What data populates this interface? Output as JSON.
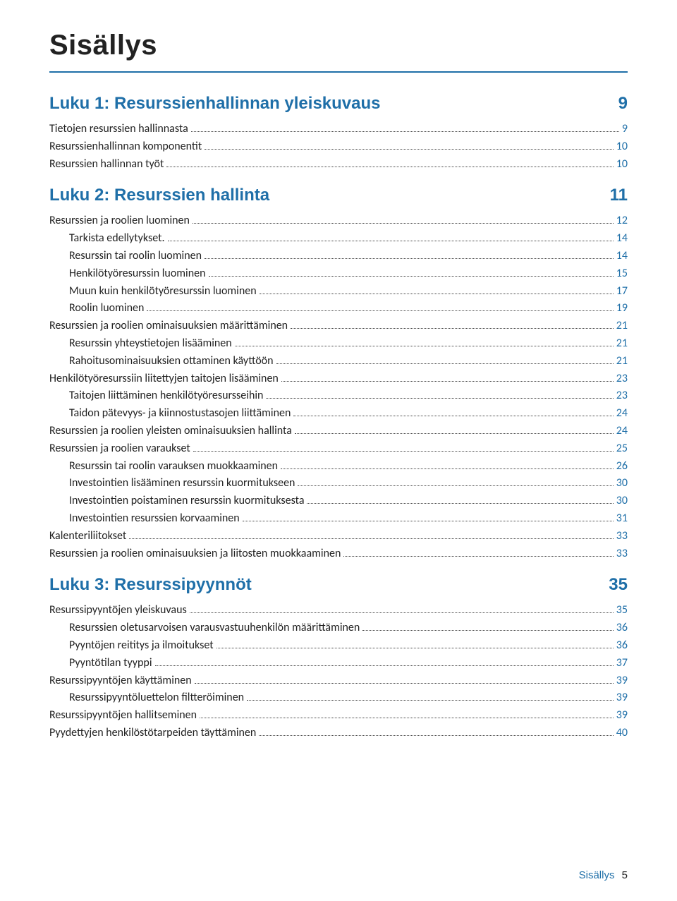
{
  "colors": {
    "accent_blue": "#1f6fa8",
    "text_body": "#222222",
    "rule_blue": "#1f6fa8",
    "leader_gray": "#444444",
    "page_number_blue": "#1f6fa8"
  },
  "title": "Sisällys",
  "chapters": [
    {
      "heading": "Luku 1: Resurssienhallinnan yleiskuvaus",
      "page": "9",
      "entries": [
        {
          "level": 0,
          "label": "Tietojen resurssien hallinnasta",
          "page": "9"
        },
        {
          "level": 0,
          "label": "Resurssienhallinnan komponentit",
          "page": "10"
        },
        {
          "level": 0,
          "label": "Resurssien hallinnan työt",
          "page": "10"
        }
      ]
    },
    {
      "heading": "Luku 2: Resurssien hallinta",
      "page": "11",
      "entries": [
        {
          "level": 0,
          "label": "Resurssien ja roolien luominen",
          "page": "12"
        },
        {
          "level": 1,
          "label": "Tarkista edellytykset.",
          "page": "14"
        },
        {
          "level": 1,
          "label": "Resurssin tai roolin luominen",
          "page": "14"
        },
        {
          "level": 1,
          "label": "Henkilötyöresurssin luominen",
          "page": "15"
        },
        {
          "level": 1,
          "label": "Muun kuin henkilötyöresurssin luominen",
          "page": "17"
        },
        {
          "level": 1,
          "label": "Roolin luominen",
          "page": "19"
        },
        {
          "level": 0,
          "label": "Resurssien ja roolien ominaisuuksien määrittäminen",
          "page": "21"
        },
        {
          "level": 1,
          "label": "Resurssin yhteystietojen lisääminen",
          "page": "21"
        },
        {
          "level": 1,
          "label": "Rahoitusominaisuuksien ottaminen käyttöön",
          "page": "21"
        },
        {
          "level": 0,
          "label": "Henkilötyöresurssiin liitettyjen taitojen lisääminen",
          "page": "23"
        },
        {
          "level": 1,
          "label": "Taitojen liittäminen henkilötyöresursseihin",
          "page": "23"
        },
        {
          "level": 1,
          "label": "Taidon pätevyys- ja kiinnostustasojen liittäminen",
          "page": "24"
        },
        {
          "level": 0,
          "label": "Resurssien ja roolien yleisten ominaisuuksien hallinta",
          "page": "24"
        },
        {
          "level": 0,
          "label": "Resurssien ja roolien varaukset",
          "page": "25"
        },
        {
          "level": 1,
          "label": "Resurssin tai roolin varauksen muokkaaminen",
          "page": "26"
        },
        {
          "level": 1,
          "label": "Investointien lisääminen resurssin kuormitukseen",
          "page": "30"
        },
        {
          "level": 1,
          "label": "Investointien poistaminen resurssin kuormituksesta",
          "page": "30"
        },
        {
          "level": 1,
          "label": "Investointien resurssien korvaaminen",
          "page": "31"
        },
        {
          "level": 0,
          "label": "Kalenteriliitokset",
          "page": "33"
        },
        {
          "level": 0,
          "label": "Resurssien ja roolien ominaisuuksien ja liitosten muokkaaminen",
          "page": "33"
        }
      ]
    },
    {
      "heading": "Luku 3: Resurssipyynnöt",
      "page": "35",
      "entries": [
        {
          "level": 0,
          "label": "Resurssipyyntöjen yleiskuvaus",
          "page": "35"
        },
        {
          "level": 1,
          "label": "Resurssien oletusarvoisen varausvastuuhenkilön määrittäminen",
          "page": "36"
        },
        {
          "level": 1,
          "label": "Pyyntöjen reititys ja ilmoitukset",
          "page": "36"
        },
        {
          "level": 1,
          "label": "Pyyntötilan tyyppi",
          "page": "37"
        },
        {
          "level": 0,
          "label": "Resurssipyyntöjen käyttäminen",
          "page": "39"
        },
        {
          "level": 1,
          "label": "Resurssipyyntöluettelon filtteröiminen",
          "page": "39"
        },
        {
          "level": 0,
          "label": "Resurssipyyntöjen hallitseminen",
          "page": "39"
        },
        {
          "level": 0,
          "label": "Pyydettyjen henkilöstötarpeiden täyttäminen",
          "page": "40"
        }
      ]
    }
  ],
  "footer": {
    "label": "Sisällys",
    "page": "5"
  }
}
